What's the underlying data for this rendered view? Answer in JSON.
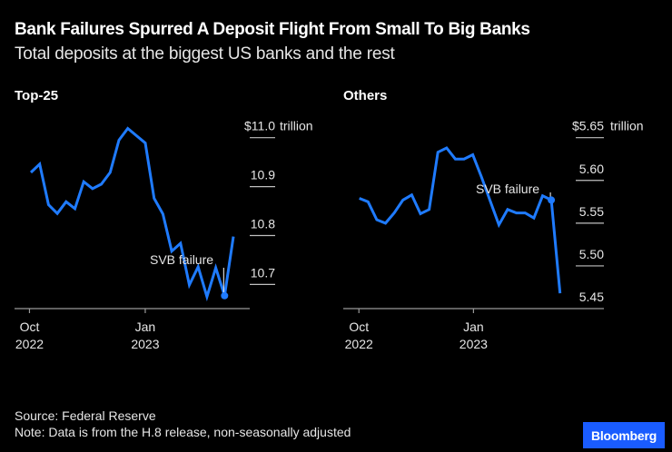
{
  "header": {
    "title": "Bank Failures Spurred A Deposit Flight From Small To Big Banks",
    "subtitle": "Total deposits at the biggest US banks and the rest"
  },
  "footer": {
    "source": "Source: Federal Reserve",
    "note": "Note: Data is from the H.8 release, non-seasonally adjusted",
    "logo": "Bloomberg"
  },
  "colors": {
    "line": "#1F7BFF",
    "background": "#000000",
    "logo_bg": "#1A5CFF",
    "annotation_line": "#FFFFFF"
  },
  "chart_data": [
    {
      "type": "line",
      "title": "Top-25",
      "xlabel": "",
      "ylabel": "",
      "unit": "trillion USD",
      "x": [
        "2022-10-05",
        "2022-10-12",
        "2022-10-19",
        "2022-10-26",
        "2022-11-02",
        "2022-11-09",
        "2022-11-16",
        "2022-11-23",
        "2022-11-30",
        "2022-12-07",
        "2022-12-14",
        "2022-12-21",
        "2022-12-28",
        "2023-01-04",
        "2023-01-11",
        "2023-01-18",
        "2023-01-25",
        "2023-02-01",
        "2023-02-08",
        "2023-02-15",
        "2023-02-22",
        "2023-03-01",
        "2023-03-08",
        "2023-03-15"
      ],
      "series": [
        {
          "name": "Top-25",
          "values": [
            10.929,
            10.946,
            10.863,
            10.845,
            10.869,
            10.855,
            10.91,
            10.896,
            10.905,
            10.929,
            10.995,
            11.019,
            11.004,
            10.989,
            10.876,
            10.844,
            10.768,
            10.784,
            10.699,
            10.736,
            10.675,
            10.734,
            10.677,
            10.798
          ]
        }
      ],
      "ylim": [
        10.65,
        11.02
      ],
      "y_ticks": [
        11.0,
        10.9,
        10.8,
        10.7
      ],
      "y_tick_labels": [
        "$11.0",
        "10.9",
        "10.8",
        "10.7"
      ],
      "y_unit_label": "trillion",
      "x_ticks": [
        {
          "date": "2022-10-01",
          "label1": "Oct",
          "label2": "2022"
        },
        {
          "date": "2023-01-01",
          "label1": "Jan",
          "label2": "2023"
        }
      ],
      "annotation": {
        "text": "SVB failure",
        "index": 22
      },
      "grid": false,
      "legend": "none"
    },
    {
      "type": "line",
      "title": "Others",
      "xlabel": "",
      "ylabel": "",
      "unit": "trillion USD",
      "x": [
        "2022-10-05",
        "2022-10-12",
        "2022-10-19",
        "2022-10-26",
        "2022-11-02",
        "2022-11-09",
        "2022-11-16",
        "2022-11-23",
        "2022-11-30",
        "2022-12-07",
        "2022-12-14",
        "2022-12-21",
        "2022-12-28",
        "2023-01-04",
        "2023-01-11",
        "2023-01-18",
        "2023-01-25",
        "2023-02-01",
        "2023-02-08",
        "2023-02-15",
        "2023-02-22",
        "2023-03-01",
        "2023-03-08",
        "2023-03-15"
      ],
      "series": [
        {
          "name": "Others",
          "values": [
            5.579,
            5.575,
            5.554,
            5.55,
            5.562,
            5.577,
            5.583,
            5.561,
            5.566,
            5.633,
            5.638,
            5.625,
            5.625,
            5.63,
            5.604,
            5.576,
            5.548,
            5.566,
            5.562,
            5.562,
            5.556,
            5.582,
            5.577,
            5.468
          ]
        }
      ],
      "ylim": [
        5.45,
        5.65
      ],
      "y_ticks": [
        5.65,
        5.6,
        5.55,
        5.5,
        5.45
      ],
      "y_tick_labels": [
        "$5.65",
        "5.60",
        "5.55",
        "5.50",
        "5.45"
      ],
      "y_unit_label": "trillion",
      "x_ticks": [
        {
          "date": "2022-10-01",
          "label1": "Oct",
          "label2": "2022"
        },
        {
          "date": "2023-01-01",
          "label1": "Jan",
          "label2": "2023"
        }
      ],
      "annotation": {
        "text": "SVB failure",
        "index": 22
      },
      "grid": false,
      "legend": "none"
    }
  ]
}
